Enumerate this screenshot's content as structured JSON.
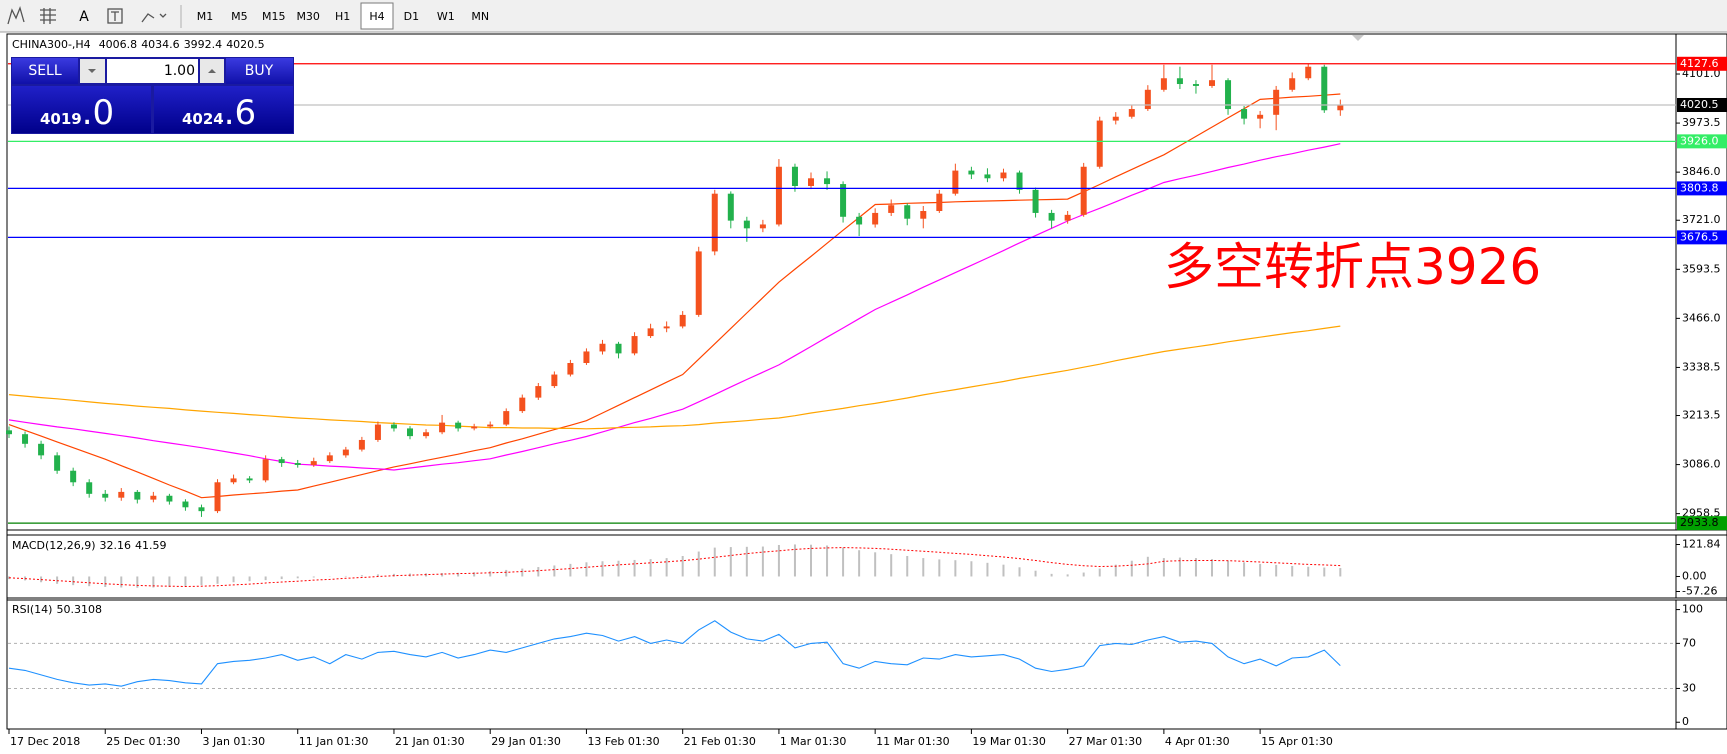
{
  "toolbar": {
    "timeframes": [
      "M1",
      "M5",
      "M15",
      "M30",
      "H1",
      "H4",
      "D1",
      "W1",
      "MN"
    ],
    "active": "H4",
    "text_tool": "A"
  },
  "trade_panel": {
    "sell": "SELL",
    "buy": "BUY",
    "volume": "1.00",
    "bid_main": "4019",
    "bid_frac": ".0",
    "ask_main": "4024",
    "ask_frac": ".6"
  },
  "chart_data": [
    {
      "type": "candlestick",
      "title": "CHINA300-,H4",
      "categories": [
        "17 Dec 2018",
        null,
        null,
        null,
        null,
        null,
        "25 Dec 01:30",
        null,
        null,
        null,
        null,
        null,
        "3 Jan 01:30",
        null,
        null,
        null,
        null,
        null,
        "11 Jan 01:30",
        null,
        null,
        null,
        null,
        null,
        "21 Jan 01:30",
        null,
        null,
        null,
        null,
        null,
        "29 Jan 01:30",
        null,
        null,
        null,
        null,
        null,
        "13 Feb 01:30",
        null,
        null,
        null,
        null,
        null,
        "21 Feb 01:30",
        null,
        null,
        null,
        null,
        null,
        "1 Mar 01:30",
        null,
        null,
        null,
        null,
        null,
        "11 Mar 01:30",
        null,
        null,
        null,
        null,
        null,
        "19 Mar 01:30",
        null,
        null,
        null,
        null,
        null,
        "27 Mar 01:30",
        null,
        null,
        null,
        null,
        null,
        "4 Apr 01:30",
        null,
        null,
        null,
        null,
        null,
        "15 Apr 01:30",
        null,
        null,
        null,
        null,
        null
      ],
      "ohlc": [
        [
          3175,
          3185,
          3155,
          3165
        ],
        [
          3165,
          3172,
          3130,
          3140
        ],
        [
          3140,
          3148,
          3100,
          3110
        ],
        [
          3110,
          3118,
          3062,
          3070
        ],
        [
          3070,
          3078,
          3030,
          3040
        ],
        [
          3040,
          3048,
          3000,
          3010
        ],
        [
          3010,
          3020,
          2990,
          3000
        ],
        [
          3000,
          3025,
          2992,
          3015
        ],
        [
          3015,
          3020,
          2985,
          2995
        ],
        [
          2995,
          3015,
          2988,
          3005
        ],
        [
          3005,
          3010,
          2982,
          2990
        ],
        [
          2990,
          2996,
          2966,
          2975
        ],
        [
          2975,
          2982,
          2950,
          2965
        ],
        [
          2965,
          3048,
          2960,
          3040
        ],
        [
          3040,
          3060,
          3035,
          3050
        ],
        [
          3050,
          3056,
          3038,
          3045
        ],
        [
          3045,
          3110,
          3040,
          3100
        ],
        [
          3100,
          3106,
          3080,
          3090
        ],
        [
          3090,
          3098,
          3078,
          3085
        ],
        [
          3085,
          3104,
          3080,
          3095
        ],
        [
          3095,
          3118,
          3090,
          3110
        ],
        [
          3110,
          3132,
          3104,
          3125
        ],
        [
          3125,
          3158,
          3120,
          3150
        ],
        [
          3150,
          3198,
          3145,
          3190
        ],
        [
          3190,
          3196,
          3172,
          3180
        ],
        [
          3180,
          3186,
          3152,
          3160
        ],
        [
          3160,
          3178,
          3154,
          3170
        ],
        [
          3170,
          3215,
          3165,
          3195
        ],
        [
          3195,
          3200,
          3172,
          3180
        ],
        [
          3180,
          3192,
          3175,
          3185
        ],
        [
          3185,
          3198,
          3180,
          3190
        ],
        [
          3190,
          3232,
          3186,
          3225
        ],
        [
          3225,
          3268,
          3220,
          3260
        ],
        [
          3260,
          3298,
          3254,
          3290
        ],
        [
          3290,
          3328,
          3285,
          3320
        ],
        [
          3320,
          3358,
          3315,
          3350
        ],
        [
          3350,
          3388,
          3345,
          3380
        ],
        [
          3380,
          3410,
          3372,
          3400
        ],
        [
          3400,
          3405,
          3362,
          3375
        ],
        [
          3375,
          3430,
          3370,
          3420
        ],
        [
          3420,
          3452,
          3415,
          3440
        ],
        [
          3440,
          3458,
          3430,
          3445
        ],
        [
          3445,
          3485,
          3440,
          3475
        ],
        [
          3475,
          3652,
          3470,
          3640
        ],
        [
          3640,
          3800,
          3630,
          3790
        ],
        [
          3790,
          3796,
          3700,
          3720
        ],
        [
          3720,
          3730,
          3665,
          3700
        ],
        [
          3700,
          3722,
          3690,
          3710
        ],
        [
          3710,
          3880,
          3705,
          3860
        ],
        [
          3860,
          3868,
          3795,
          3810
        ],
        [
          3810,
          3845,
          3802,
          3830
        ],
        [
          3830,
          3848,
          3800,
          3815
        ],
        [
          3815,
          3822,
          3715,
          3730
        ],
        [
          3730,
          3740,
          3680,
          3710
        ],
        [
          3710,
          3752,
          3702,
          3740
        ],
        [
          3740,
          3775,
          3732,
          3760
        ],
        [
          3760,
          3765,
          3708,
          3725
        ],
        [
          3725,
          3758,
          3700,
          3745
        ],
        [
          3745,
          3800,
          3740,
          3790
        ],
        [
          3790,
          3868,
          3785,
          3850
        ],
        [
          3850,
          3860,
          3828,
          3840
        ],
        [
          3840,
          3856,
          3820,
          3830
        ],
        [
          3830,
          3855,
          3822,
          3845
        ],
        [
          3845,
          3850,
          3790,
          3800
        ],
        [
          3800,
          3806,
          3728,
          3740
        ],
        [
          3740,
          3748,
          3700,
          3720
        ],
        [
          3720,
          3745,
          3712,
          3735
        ],
        [
          3735,
          3870,
          3730,
          3860
        ],
        [
          3860,
          3990,
          3855,
          3980
        ],
        [
          3980,
          4002,
          3970,
          3990
        ],
        [
          3990,
          4020,
          3985,
          4010
        ],
        [
          4010,
          4072,
          4005,
          4060
        ],
        [
          4060,
          4125,
          4055,
          4090
        ],
        [
          4090,
          4120,
          4062,
          4075
        ],
        [
          4075,
          4085,
          4050,
          4070
        ],
        [
          4070,
          4125,
          4065,
          4085
        ],
        [
          4085,
          4090,
          3995,
          4010
        ],
        [
          4010,
          4018,
          3970,
          3985
        ],
        [
          3985,
          4005,
          3960,
          3995
        ],
        [
          3995,
          4070,
          3955,
          4060
        ],
        [
          4060,
          4105,
          4055,
          4090
        ],
        [
          4090,
          4127.6,
          4085,
          4120
        ],
        [
          4120,
          4125,
          4000,
          4006.8
        ],
        [
          4006.8,
          4034.6,
          3992.4,
          4020.5
        ]
      ],
      "up_color": "#f4511e",
      "down_color": "#22b14c",
      "series": [
        {
          "color": "#ff4500",
          "values": [
            3190,
            3175,
            3160,
            3145,
            3130,
            3115,
            3100,
            3083,
            3067,
            3050,
            3033,
            3017,
            3000,
            3003,
            3007,
            3010,
            3013,
            3017,
            3020,
            3030,
            3040,
            3050,
            3060,
            3070,
            3080,
            3088,
            3097,
            3105,
            3113,
            3122,
            3130,
            3142,
            3153,
            3165,
            3177,
            3188,
            3200,
            3220,
            3240,
            3260,
            3280,
            3300,
            3320,
            3360,
            3400,
            3440,
            3480,
            3520,
            3560,
            3594,
            3627,
            3661,
            3695,
            3728,
            3762,
            3763,
            3765,
            3766,
            3767,
            3769,
            3770,
            3771,
            3772,
            3773,
            3774,
            3775,
            3776,
            3795,
            3814,
            3834,
            3853,
            3872,
            3891,
            3915,
            3939,
            3963,
            3987,
            4011,
            4035,
            4038,
            4041,
            4043,
            4046,
            4049
          ]
        },
        {
          "color": "#ff00ff",
          "values": [
            3202,
            3196,
            3190,
            3184,
            3179,
            3173,
            3167,
            3161,
            3155,
            3148,
            3142,
            3136,
            3130,
            3123,
            3116,
            3109,
            3101,
            3094,
            3087,
            3085,
            3082,
            3080,
            3077,
            3075,
            3072,
            3077,
            3082,
            3087,
            3091,
            3096,
            3101,
            3111,
            3120,
            3130,
            3140,
            3149,
            3159,
            3171,
            3183,
            3195,
            3206,
            3218,
            3230,
            3249,
            3268,
            3288,
            3307,
            3326,
            3345,
            3369,
            3393,
            3417,
            3441,
            3465,
            3489,
            3508,
            3527,
            3547,
            3566,
            3585,
            3604,
            3623,
            3642,
            3662,
            3681,
            3700,
            3719,
            3736,
            3752,
            3769,
            3786,
            3802,
            3819,
            3829,
            3838,
            3848,
            3858,
            3867,
            3877,
            3886,
            3894,
            3903,
            3911,
            3920
          ]
        },
        {
          "color": "#ffa500",
          "values": [
            3268,
            3264,
            3260,
            3257,
            3253,
            3249,
            3245,
            3242,
            3238,
            3235,
            3232,
            3228,
            3225,
            3222,
            3219,
            3216,
            3213,
            3210,
            3207,
            3205,
            3202,
            3200,
            3198,
            3195,
            3193,
            3191,
            3189,
            3188,
            3186,
            3184,
            3182,
            3182,
            3181,
            3181,
            3180,
            3180,
            3179,
            3180,
            3182,
            3183,
            3184,
            3186,
            3187,
            3190,
            3194,
            3197,
            3200,
            3204,
            3207,
            3213,
            3220,
            3226,
            3232,
            3239,
            3245,
            3252,
            3259,
            3267,
            3274,
            3281,
            3288,
            3295,
            3302,
            3310,
            3317,
            3324,
            3331,
            3339,
            3347,
            3356,
            3364,
            3372,
            3380,
            3386,
            3392,
            3398,
            3405,
            3411,
            3417,
            3423,
            3429,
            3434,
            3440,
            3446
          ]
        }
      ],
      "ylim": [
        2916,
        4205
      ],
      "yticks": [
        {
          "value": 4101,
          "label": "4101.0"
        },
        3973.5,
        {
          "value": 3846,
          "label": "3846.0"
        },
        {
          "value": 3721,
          "label": "3721.0"
        },
        3593.5,
        {
          "value": 3466,
          "label": "3466.0"
        },
        3338.5,
        3213.5,
        {
          "value": 3086,
          "label": "3086.0"
        },
        2958.5
      ],
      "levels": [
        {
          "value": 4127.6,
          "color": "#ff0000",
          "label_bg": "#ff0000",
          "label_color": "#ffffff"
        },
        {
          "value": 4020.5,
          "color": "#c0c0c0",
          "label_bg": "#000000",
          "label_color": "#ffffff"
        },
        {
          "value": 3926,
          "label": "3926.0",
          "color": "#33ee66",
          "label_bg": "#33ee66",
          "label_color": "#ffffff"
        },
        {
          "value": 3803.8,
          "color": "#0000ff",
          "label_bg": "#0000ff",
          "label_color": "#ffffff"
        },
        {
          "value": 3676.5,
          "color": "#0000ff",
          "label_bg": "#0000ff",
          "label_color": "#ffffff"
        },
        {
          "value": 2933.8,
          "color": "#008000",
          "label_bg": "#00a000",
          "label_color": "#000000"
        }
      ],
      "annotation": "多空转折点3926"
    },
    {
      "type": "macd",
      "title": "MACD(12,26,9)",
      "ylim": [
        -82,
        158
      ],
      "yticks": [
        121.84,
        {
          "value": 0,
          "label": "0.00"
        },
        -57.26
      ],
      "series": [
        {
          "style": "bar",
          "color": "#c0c0c0",
          "values": [
            -10,
            -15,
            -22,
            -28,
            -33,
            -37,
            -40,
            -42,
            -43,
            -42,
            -40,
            -37,
            -33,
            -28,
            -22,
            -18,
            -14,
            -10,
            -7,
            -4,
            -1,
            2,
            5,
            8,
            10,
            11,
            12,
            13,
            14,
            16,
            20,
            25,
            30,
            36,
            42,
            48,
            54,
            58,
            60,
            63,
            66,
            70,
            78,
            95,
            110,
            112,
            113,
            114,
            120,
            122,
            121,
            118,
            110,
            100,
            92,
            85,
            78,
            70,
            65,
            62,
            58,
            52,
            45,
            35,
            22,
            10,
            8,
            15,
            30,
            45,
            60,
            75,
            70,
            72,
            70,
            66,
            60,
            54,
            48,
            44,
            40,
            37,
            34,
            32.16
          ]
        },
        {
          "style": "dotted",
          "color": "#ff0000",
          "values": [
            -5,
            -8,
            -12,
            -16,
            -20,
            -24,
            -28,
            -31,
            -34,
            -36,
            -37,
            -38,
            -37,
            -35,
            -32,
            -29,
            -25,
            -21,
            -18,
            -14,
            -11,
            -7,
            -4,
            0,
            3,
            5,
            7,
            9,
            11,
            12,
            14,
            16,
            19,
            22,
            26,
            30,
            35,
            40,
            44,
            48,
            52,
            56,
            60,
            66,
            73,
            80,
            87,
            93,
            98,
            103,
            107,
            109,
            110,
            109,
            107,
            104,
            100,
            96,
            92,
            88,
            84,
            79,
            74,
            68,
            61,
            53,
            46,
            41,
            38,
            39,
            43,
            48,
            58,
            60,
            61,
            61,
            60,
            58,
            55,
            52,
            49,
            46,
            44,
            41.59
          ]
        }
      ]
    },
    {
      "type": "line",
      "title": "RSI(14)",
      "ylim": [
        -6,
        108.5
      ],
      "yticks": [
        100,
        70,
        30,
        0
      ],
      "levels": [
        70,
        30
      ],
      "color": "#1e90ff",
      "values": [
        48,
        46,
        42,
        38,
        35,
        33,
        34,
        32,
        36,
        38,
        37,
        35,
        34,
        52,
        54,
        55,
        57,
        60,
        55,
        58,
        52,
        60,
        56,
        62,
        63,
        60,
        58,
        62,
        57,
        60,
        64,
        62,
        66,
        70,
        74,
        76,
        79,
        77,
        72,
        76,
        70,
        73,
        70,
        82,
        90,
        80,
        74,
        72,
        78,
        66,
        70,
        71,
        52,
        48,
        54,
        52,
        51,
        57,
        56,
        60,
        58,
        59,
        60,
        56,
        48,
        45,
        47,
        50,
        68,
        70,
        69,
        73,
        76,
        71,
        72,
        70,
        58,
        52,
        56,
        50,
        57,
        58,
        64,
        50.3108
      ]
    }
  ]
}
